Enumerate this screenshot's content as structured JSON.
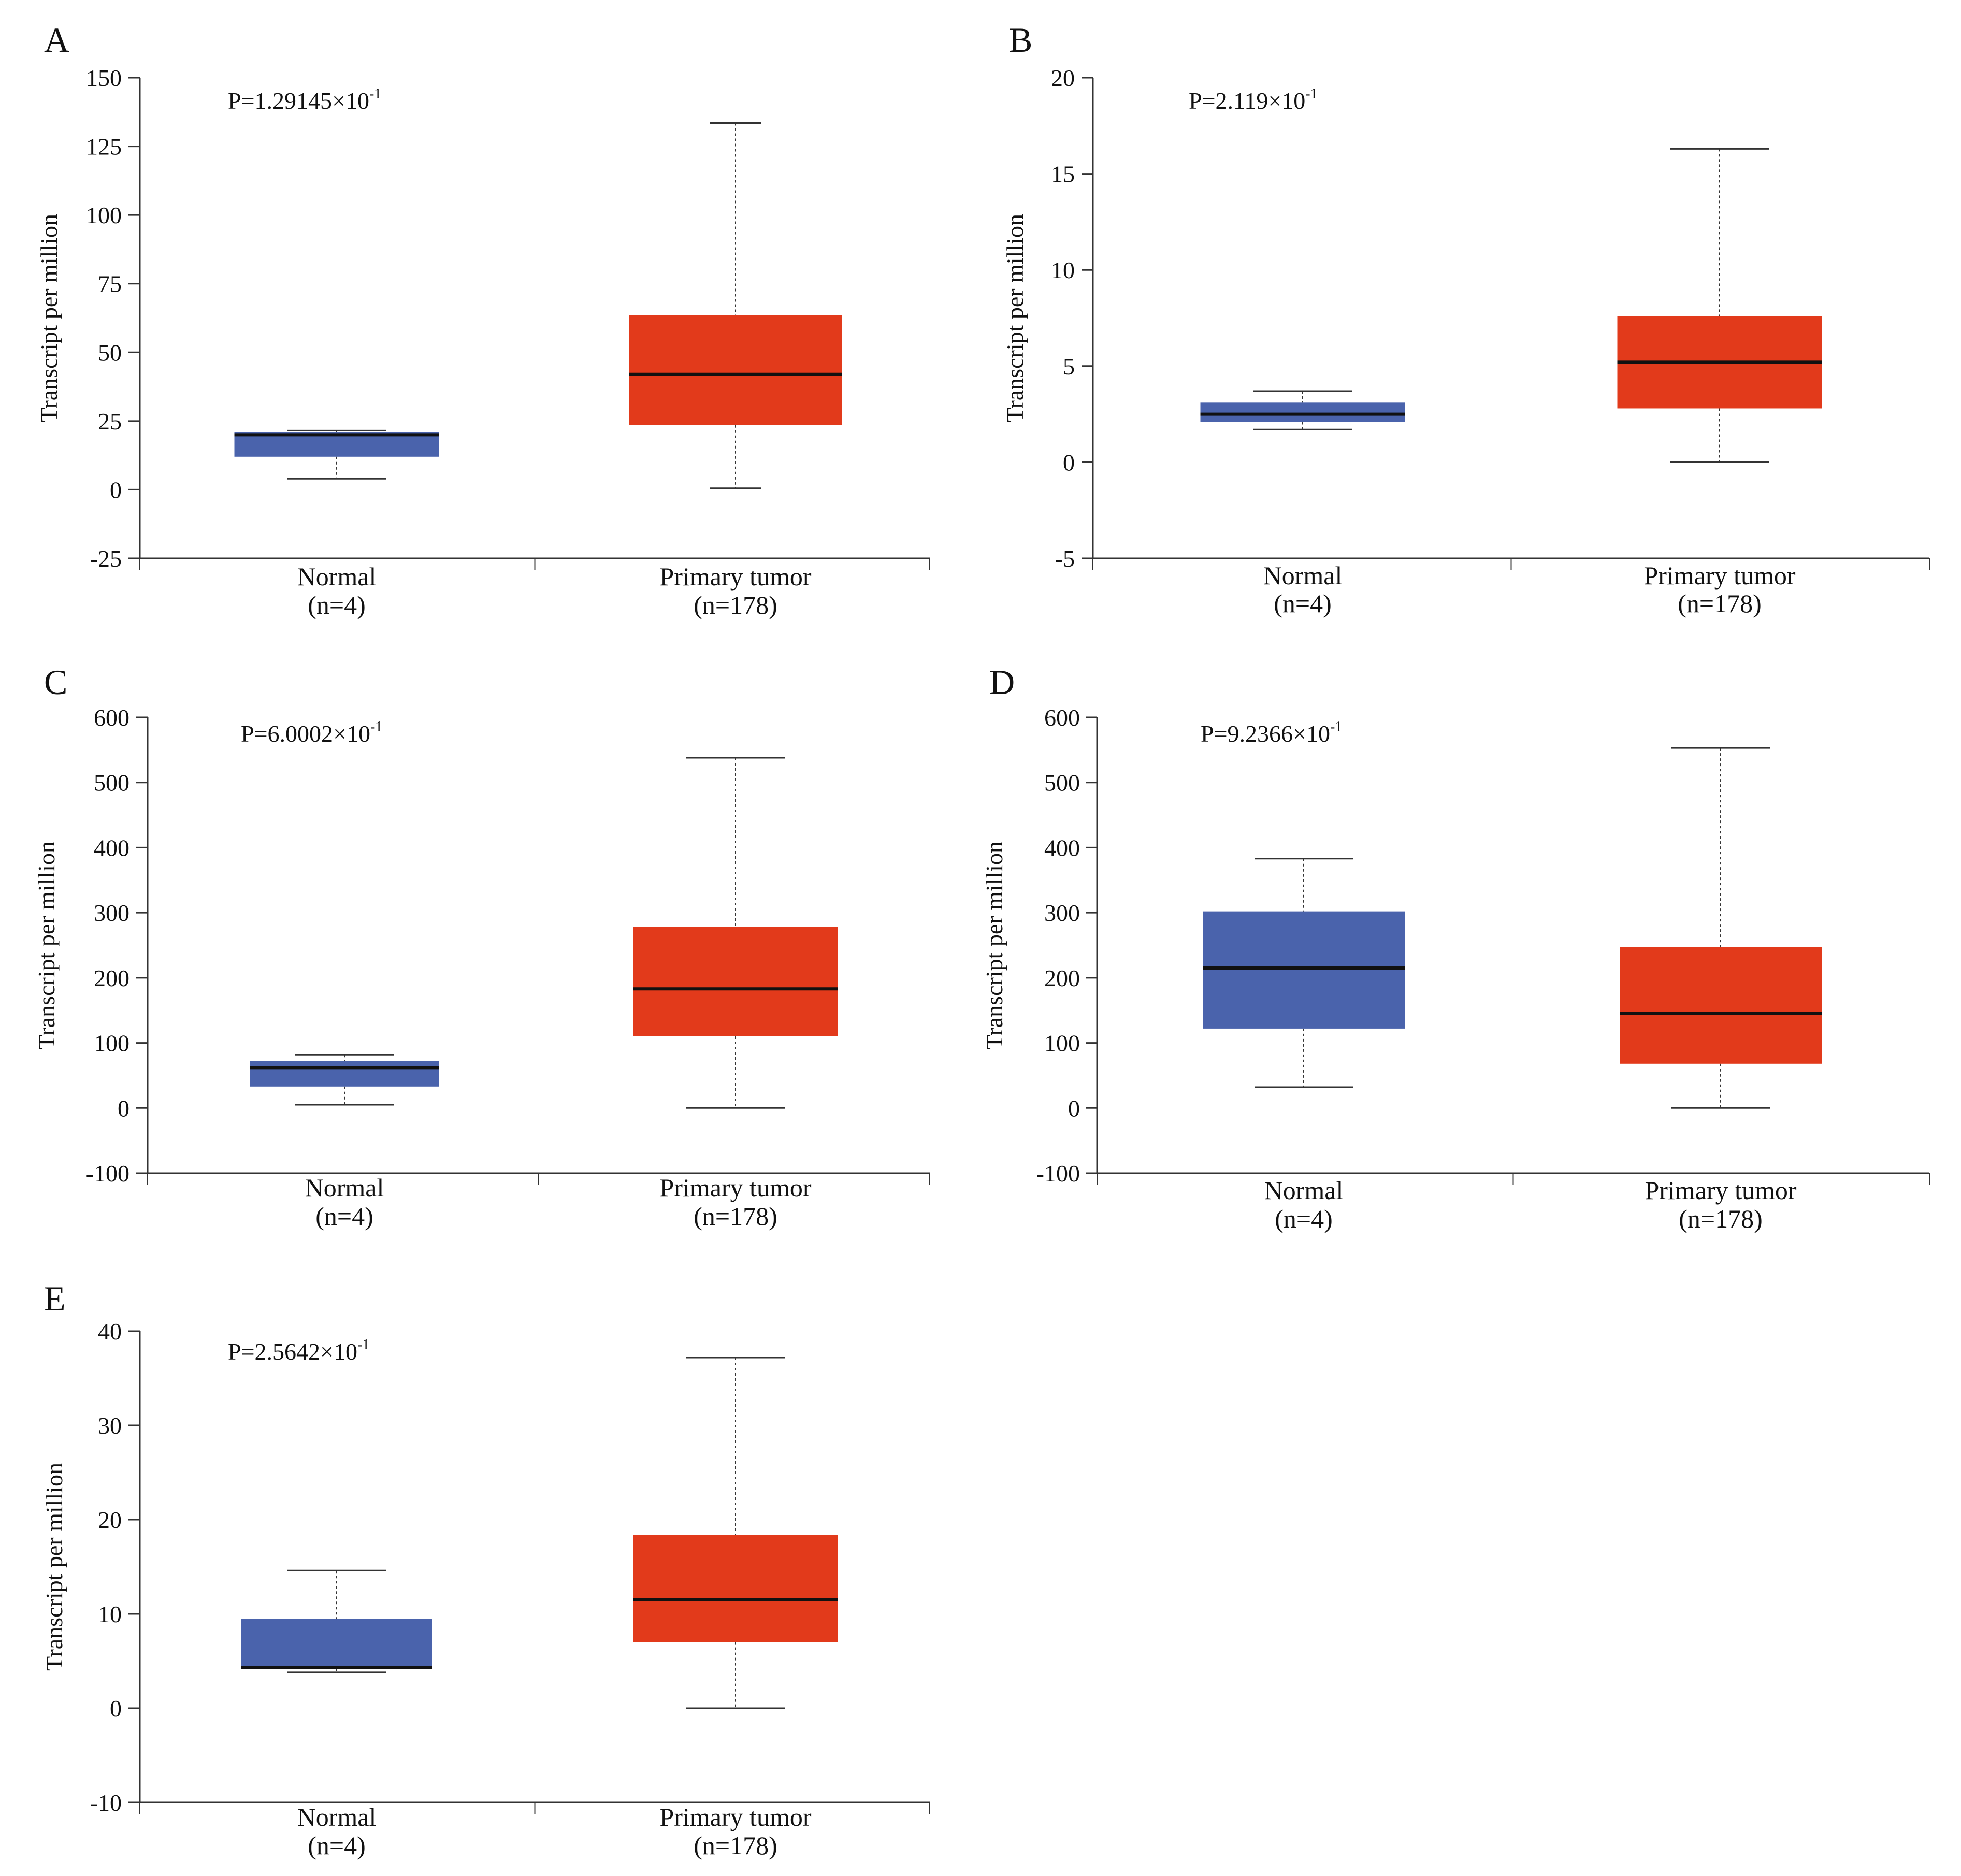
{
  "colors": {
    "normal_box": "#4a63ac",
    "tumor_box": "#e23a1b",
    "axis": "#333333",
    "median": "#111111"
  },
  "chart_data": [
    {
      "panel_label": "A",
      "type": "boxplot",
      "ylabel": "Transcript per million",
      "p_text": "P=1.29145×10",
      "p_exp": "-1",
      "yticks": [
        150,
        125,
        100,
        75,
        50,
        25,
        0,
        -25
      ],
      "ylim": [
        -25,
        150
      ],
      "groups": [
        {
          "name": "Normal",
          "n_label": "(n=4)",
          "min": 4,
          "q1": 12,
          "median": 20,
          "q3": 21,
          "max": 21.5,
          "color": "normal"
        },
        {
          "name": "Primary tumor",
          "n_label": "(n=178)",
          "min": 0.5,
          "q1": 23.5,
          "median": 42,
          "q3": 63.5,
          "max": 133.5,
          "color": "tumor"
        }
      ]
    },
    {
      "panel_label": "B",
      "type": "boxplot",
      "ylabel": "Transcript per million",
      "p_text": "P=2.119×10",
      "p_exp": "-1",
      "yticks": [
        20,
        15,
        10,
        5,
        0,
        -5
      ],
      "ylim": [
        -5,
        20
      ],
      "groups": [
        {
          "name": "Normal",
          "n_label": "(n=4)",
          "min": 1.7,
          "q1": 2.1,
          "median": 2.5,
          "q3": 3.1,
          "max": 3.7,
          "color": "normal"
        },
        {
          "name": "Primary tumor",
          "n_label": "(n=178)",
          "min": 0,
          "q1": 2.8,
          "median": 5.2,
          "q3": 7.6,
          "max": 16.3,
          "color": "tumor"
        }
      ]
    },
    {
      "panel_label": "C",
      "type": "boxplot",
      "ylabel": "Transcript per million",
      "p_text": "P=6.0002×10",
      "p_exp": "-1",
      "yticks": [
        600,
        500,
        400,
        300,
        200,
        100,
        0,
        -100
      ],
      "ylim": [
        -100,
        600
      ],
      "groups": [
        {
          "name": "Normal",
          "n_label": "(n=4)",
          "min": 5,
          "q1": 33,
          "median": 62,
          "q3": 72,
          "max": 82,
          "color": "normal"
        },
        {
          "name": "Primary tumor",
          "n_label": "(n=178)",
          "min": 0,
          "q1": 110,
          "median": 183,
          "q3": 278,
          "max": 538,
          "color": "tumor"
        }
      ]
    },
    {
      "panel_label": "D",
      "type": "boxplot",
      "ylabel": "Transcript per million",
      "p_text": "P=9.2366×10",
      "p_exp": "-1",
      "yticks": [
        600,
        500,
        400,
        300,
        200,
        100,
        0,
        -100
      ],
      "ylim": [
        -100,
        600
      ],
      "groups": [
        {
          "name": "Normal",
          "n_label": "(n=4)",
          "min": 32,
          "q1": 122,
          "median": 215,
          "q3": 302,
          "max": 383,
          "color": "normal"
        },
        {
          "name": "Primary tumor",
          "n_label": "(n=178)",
          "min": 0,
          "q1": 68,
          "median": 145,
          "q3": 247,
          "max": 553,
          "color": "tumor"
        }
      ]
    },
    {
      "panel_label": "E",
      "type": "boxplot",
      "ylabel": "Transcript per million",
      "p_text": "P=2.5642×10",
      "p_exp": "-1",
      "yticks": [
        40,
        30,
        20,
        10,
        0,
        -10
      ],
      "ylim": [
        -10,
        40
      ],
      "groups": [
        {
          "name": "Normal",
          "n_label": "(n=4)",
          "min": 3.8,
          "q1": 4.2,
          "median": 4.3,
          "q3": 9.5,
          "max": 14.6,
          "color": "normal"
        },
        {
          "name": "Primary tumor",
          "n_label": "(n=178)",
          "min": 0,
          "q1": 7,
          "median": 11.5,
          "q3": 18.4,
          "max": 37.2,
          "color": "tumor"
        }
      ]
    }
  ]
}
